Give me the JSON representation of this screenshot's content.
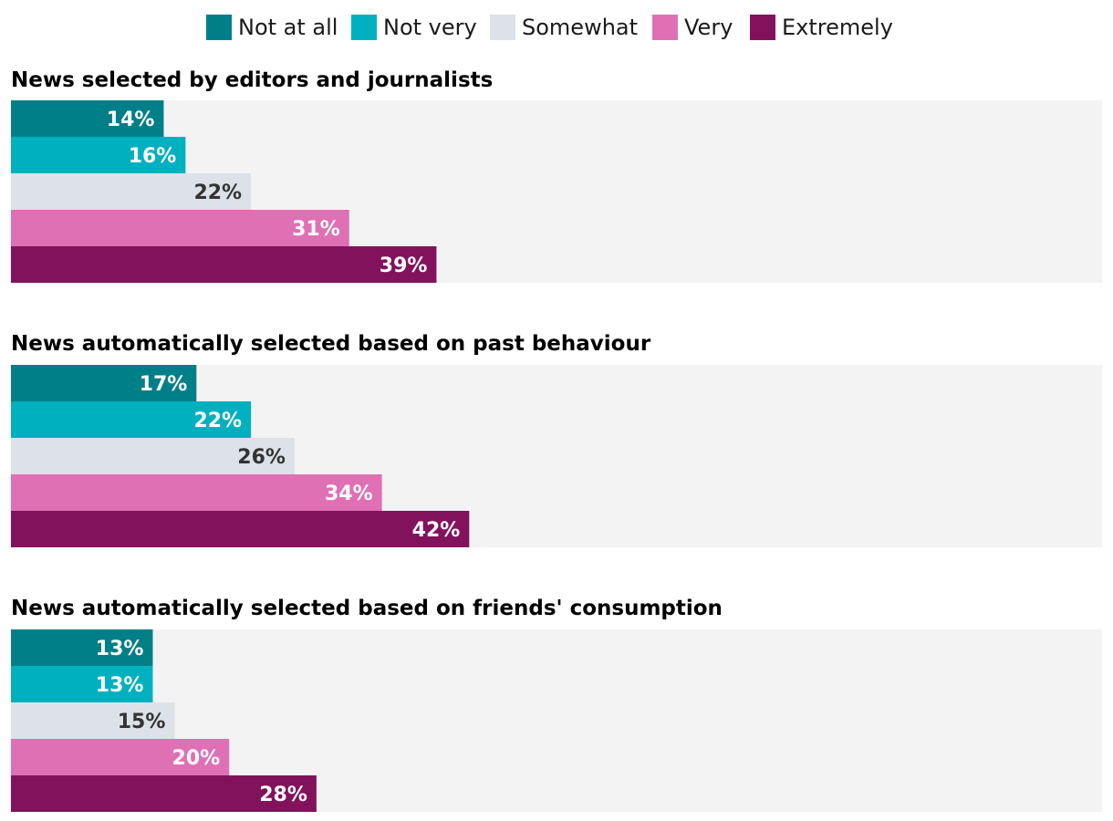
{
  "chart_data": {
    "type": "bar",
    "orientation": "horizontal",
    "xlim": [
      0,
      100
    ],
    "categories": [
      "Not at all",
      "Not very",
      "Somewhat",
      "Very",
      "Extremely"
    ],
    "colors": {
      "Not at all": "#007f89",
      "Not very": "#00b0bf",
      "Somewhat": "#dde1e8",
      "Very": "#e070b4",
      "Extremely": "#83125d",
      "track": "#f3f3f3",
      "label_dark": "#333333",
      "label_light": "#ffffff"
    },
    "legend_position": "top-center",
    "panels": [
      {
        "title": "News selected by editors and journalists",
        "values": [
          14,
          16,
          22,
          31,
          39
        ],
        "labels": [
          "14%",
          "16%",
          "22%",
          "31%",
          "39%"
        ]
      },
      {
        "title": "News automatically selected based on past behaviour",
        "values": [
          17,
          22,
          26,
          34,
          42
        ],
        "labels": [
          "17%",
          "22%",
          "26%",
          "34%",
          "42%"
        ]
      },
      {
        "title": "News automatically selected based on friends' consumption",
        "values": [
          13,
          13,
          15,
          20,
          28
        ],
        "labels": [
          "13%",
          "13%",
          "15%",
          "20%",
          "28%"
        ]
      }
    ]
  }
}
